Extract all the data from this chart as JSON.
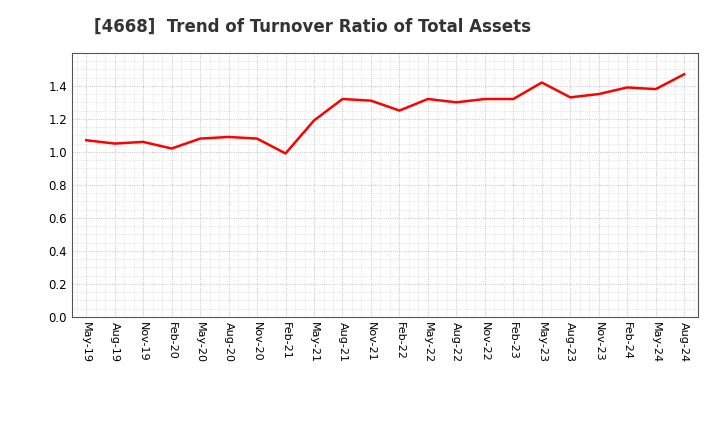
{
  "title": "[4668]  Trend of Turnover Ratio of Total Assets",
  "title_fontsize": 12,
  "title_color": "#333333",
  "line_color": "#FF0000",
  "line_width": 1.8,
  "background_color": "#FFFFFF",
  "grid_color": "#AAAAAA",
  "ylim": [
    0.0,
    1.6
  ],
  "yticks": [
    0.0,
    0.2,
    0.4,
    0.6,
    0.8,
    1.0,
    1.2,
    1.4
  ],
  "x_labels": [
    "May-19",
    "Aug-19",
    "Nov-19",
    "Feb-20",
    "May-20",
    "Aug-20",
    "Nov-20",
    "Feb-21",
    "May-21",
    "Aug-21",
    "Nov-21",
    "Feb-22",
    "May-22",
    "Aug-22",
    "Nov-22",
    "Feb-23",
    "May-23",
    "Aug-23",
    "Nov-23",
    "Feb-24",
    "May-24",
    "Aug-24"
  ],
  "values": [
    1.07,
    1.05,
    1.06,
    1.02,
    1.08,
    1.09,
    1.08,
    0.99,
    1.19,
    1.32,
    1.31,
    1.25,
    1.32,
    1.3,
    1.32,
    1.32,
    1.42,
    1.33,
    1.35,
    1.39,
    1.38,
    1.47
  ]
}
